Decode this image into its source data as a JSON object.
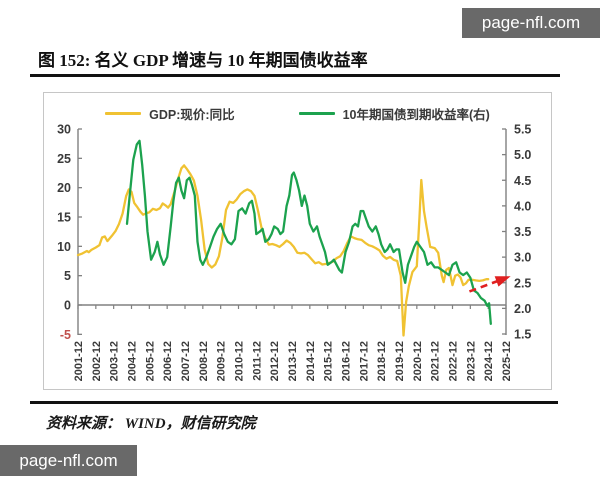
{
  "watermark": {
    "text": "page-nfl.com",
    "bg": "#696969",
    "fg": "#ffffff"
  },
  "figure": {
    "title": "图 152: 名义 GDP 增速与 10 年期国债收益率",
    "source_label": "资料来源： WIND，财信研究院"
  },
  "chart_data": {
    "type": "line",
    "title": "名义GDP增速与10年期国债收益率",
    "legend_position": "top",
    "grid": false,
    "legend": [
      {
        "label": "GDP:现价:同比",
        "color": "#F0C232",
        "axis": "left"
      },
      {
        "label": "10年期国债到期收益率(右)",
        "color": "#1CA24E",
        "axis": "right"
      }
    ],
    "x_axis": {
      "labels": [
        "2001-12",
        "2002-12",
        "2003-12",
        "2004-12",
        "2005-12",
        "2006-12",
        "2007-12",
        "2008-12",
        "2009-12",
        "2010-12",
        "2011-12",
        "2012-12",
        "2013-12",
        "2014-12",
        "2015-12",
        "2016-12",
        "2017-12",
        "2018-12",
        "2019-12",
        "2020-12",
        "2021-12",
        "2022-12",
        "2023-12",
        "2024-12",
        "2025-12"
      ],
      "span_years": 24
    },
    "left_axis": {
      "ticks": [
        30,
        25,
        20,
        15,
        10,
        5,
        0,
        -5
      ],
      "min": -5,
      "max": 30,
      "label_color": "#3a3a3a",
      "negative_color": "#C0504D"
    },
    "right_axis": {
      "ticks": [
        5.5,
        5.0,
        4.5,
        4.0,
        3.5,
        3.0,
        2.5,
        2.0,
        1.5
      ],
      "min": 1.5,
      "max": 5.5,
      "label_color": "#3a3a3a"
    },
    "axis_color": "#808080",
    "series": [
      {
        "name": "GDP:现价:同比",
        "axis": "left",
        "color": "#F0C232",
        "unit": "%",
        "points": [
          [
            0,
            8.5
          ],
          [
            0.25,
            8.8
          ],
          [
            0.5,
            9.2
          ],
          [
            0.6,
            9.0
          ],
          [
            0.75,
            9.4
          ],
          [
            1,
            9.8
          ],
          [
            1.2,
            10.2
          ],
          [
            1.35,
            11.5
          ],
          [
            1.5,
            11.7
          ],
          [
            1.65,
            10.9
          ],
          [
            1.9,
            11.8
          ],
          [
            2.1,
            12.6
          ],
          [
            2.3,
            13.8
          ],
          [
            2.5,
            15.6
          ],
          [
            2.7,
            18.6
          ],
          [
            2.85,
            19.7
          ],
          [
            3.0,
            19.3
          ],
          [
            3.15,
            17.4
          ],
          [
            3.3,
            16.8
          ],
          [
            3.5,
            15.9
          ],
          [
            3.65,
            15.4
          ],
          [
            3.8,
            15.6
          ],
          [
            4.0,
            15.8
          ],
          [
            4.2,
            16.4
          ],
          [
            4.4,
            16.2
          ],
          [
            4.6,
            16.5
          ],
          [
            4.75,
            17.3
          ],
          [
            4.9,
            17.0
          ],
          [
            5.05,
            16.6
          ],
          [
            5.2,
            17.2
          ],
          [
            5.4,
            19.2
          ],
          [
            5.6,
            21.4
          ],
          [
            5.8,
            23.3
          ],
          [
            5.95,
            23.8
          ],
          [
            6.1,
            23.2
          ],
          [
            6.3,
            22.3
          ],
          [
            6.5,
            21.2
          ],
          [
            6.7,
            18.6
          ],
          [
            6.9,
            14.5
          ],
          [
            7.1,
            9.5
          ],
          [
            7.3,
            7.0
          ],
          [
            7.5,
            6.4
          ],
          [
            7.7,
            6.9
          ],
          [
            7.9,
            8.3
          ],
          [
            8.1,
            11.5
          ],
          [
            8.3,
            16.2
          ],
          [
            8.5,
            17.6
          ],
          [
            8.7,
            17.4
          ],
          [
            8.9,
            18.0
          ],
          [
            9.1,
            18.9
          ],
          [
            9.3,
            19.4
          ],
          [
            9.5,
            19.7
          ],
          [
            9.7,
            19.4
          ],
          [
            9.9,
            18.6
          ],
          [
            10.1,
            16.0
          ],
          [
            10.3,
            13.0
          ],
          [
            10.5,
            11.4
          ],
          [
            10.7,
            10.3
          ],
          [
            10.9,
            10.4
          ],
          [
            11.1,
            10.2
          ],
          [
            11.3,
            9.9
          ],
          [
            11.5,
            10.4
          ],
          [
            11.7,
            11.0
          ],
          [
            11.9,
            10.6
          ],
          [
            12.1,
            9.9
          ],
          [
            12.3,
            8.9
          ],
          [
            12.5,
            8.8
          ],
          [
            12.7,
            8.9
          ],
          [
            12.9,
            8.5
          ],
          [
            13.1,
            7.8
          ],
          [
            13.3,
            7.1
          ],
          [
            13.5,
            7.3
          ],
          [
            13.7,
            6.9
          ],
          [
            13.9,
            7.0
          ],
          [
            14.1,
            7.2
          ],
          [
            14.3,
            7.4
          ],
          [
            14.5,
            8.0
          ],
          [
            14.7,
            8.3
          ],
          [
            14.9,
            9.2
          ],
          [
            15.1,
            10.6
          ],
          [
            15.3,
            11.7
          ],
          [
            15.5,
            11.4
          ],
          [
            15.7,
            11.2
          ],
          [
            15.9,
            11.1
          ],
          [
            16.1,
            10.6
          ],
          [
            16.3,
            10.2
          ],
          [
            16.5,
            10.0
          ],
          [
            16.7,
            9.7
          ],
          [
            16.9,
            9.3
          ],
          [
            17.1,
            8.4
          ],
          [
            17.3,
            7.9
          ],
          [
            17.5,
            8.2
          ],
          [
            17.7,
            7.7
          ],
          [
            17.9,
            7.5
          ],
          [
            18.1,
            5.0
          ],
          [
            18.25,
            -5.2
          ],
          [
            18.4,
            0.5
          ],
          [
            18.55,
            3.2
          ],
          [
            18.75,
            5.6
          ],
          [
            19.0,
            6.6
          ],
          [
            19.15,
            15.0
          ],
          [
            19.25,
            21.3
          ],
          [
            19.4,
            16.0
          ],
          [
            19.55,
            13.3
          ],
          [
            19.75,
            9.9
          ],
          [
            20.0,
            9.7
          ],
          [
            20.2,
            8.9
          ],
          [
            20.4,
            5.0
          ],
          [
            20.5,
            3.9
          ],
          [
            20.65,
            6.0
          ],
          [
            20.8,
            6.3
          ],
          [
            21.0,
            3.4
          ],
          [
            21.15,
            5.0
          ],
          [
            21.3,
            5.2
          ],
          [
            21.45,
            4.7
          ],
          [
            21.6,
            3.4
          ],
          [
            21.75,
            3.7
          ],
          [
            21.9,
            4.3
          ],
          [
            22.1,
            4.3
          ],
          [
            22.3,
            4.2
          ],
          [
            22.5,
            4.1
          ],
          [
            22.7,
            4.2
          ],
          [
            22.9,
            4.4
          ],
          [
            23.0,
            4.4
          ]
        ]
      },
      {
        "name": "10年期国债到期收益率(右)",
        "axis": "right",
        "color": "#1CA24E",
        "unit": "%",
        "points": [
          [
            2.75,
            3.65
          ],
          [
            2.9,
            4.2
          ],
          [
            3.1,
            4.9
          ],
          [
            3.3,
            5.2
          ],
          [
            3.45,
            5.27
          ],
          [
            3.6,
            4.8
          ],
          [
            3.75,
            4.2
          ],
          [
            3.9,
            3.5
          ],
          [
            4.1,
            2.95
          ],
          [
            4.3,
            3.1
          ],
          [
            4.45,
            3.3
          ],
          [
            4.6,
            3.05
          ],
          [
            4.8,
            2.85
          ],
          [
            5.0,
            3.0
          ],
          [
            5.2,
            3.6
          ],
          [
            5.35,
            4.1
          ],
          [
            5.5,
            4.45
          ],
          [
            5.65,
            4.55
          ],
          [
            5.8,
            4.3
          ],
          [
            5.95,
            4.15
          ],
          [
            6.1,
            4.5
          ],
          [
            6.25,
            4.55
          ],
          [
            6.4,
            4.4
          ],
          [
            6.55,
            4.2
          ],
          [
            6.7,
            3.3
          ],
          [
            6.85,
            2.95
          ],
          [
            7.0,
            2.85
          ],
          [
            7.2,
            3.0
          ],
          [
            7.4,
            3.2
          ],
          [
            7.6,
            3.4
          ],
          [
            7.8,
            3.55
          ],
          [
            8.0,
            3.65
          ],
          [
            8.2,
            3.45
          ],
          [
            8.4,
            3.3
          ],
          [
            8.6,
            3.25
          ],
          [
            8.8,
            3.35
          ],
          [
            9.0,
            3.9
          ],
          [
            9.2,
            3.95
          ],
          [
            9.4,
            3.85
          ],
          [
            9.6,
            4.05
          ],
          [
            9.75,
            4.1
          ],
          [
            9.9,
            3.85
          ],
          [
            10.0,
            3.45
          ],
          [
            10.2,
            3.5
          ],
          [
            10.35,
            3.55
          ],
          [
            10.5,
            3.3
          ],
          [
            10.7,
            3.35
          ],
          [
            10.85,
            3.45
          ],
          [
            11.0,
            3.6
          ],
          [
            11.2,
            3.55
          ],
          [
            11.35,
            3.45
          ],
          [
            11.5,
            3.5
          ],
          [
            11.7,
            4.0
          ],
          [
            11.85,
            4.2
          ],
          [
            12.0,
            4.6
          ],
          [
            12.1,
            4.65
          ],
          [
            12.25,
            4.5
          ],
          [
            12.4,
            4.3
          ],
          [
            12.55,
            4.0
          ],
          [
            12.7,
            4.2
          ],
          [
            12.85,
            4.0
          ],
          [
            13.0,
            3.65
          ],
          [
            13.2,
            3.5
          ],
          [
            13.4,
            3.6
          ],
          [
            13.55,
            3.4
          ],
          [
            13.7,
            3.25
          ],
          [
            13.85,
            3.1
          ],
          [
            14.0,
            2.85
          ],
          [
            14.2,
            2.9
          ],
          [
            14.35,
            2.95
          ],
          [
            14.5,
            2.85
          ],
          [
            14.65,
            2.75
          ],
          [
            14.8,
            2.7
          ],
          [
            15.0,
            3.1
          ],
          [
            15.2,
            3.3
          ],
          [
            15.4,
            3.6
          ],
          [
            15.55,
            3.65
          ],
          [
            15.7,
            3.6
          ],
          [
            15.85,
            3.9
          ],
          [
            16.0,
            3.9
          ],
          [
            16.15,
            3.75
          ],
          [
            16.3,
            3.6
          ],
          [
            16.5,
            3.5
          ],
          [
            16.7,
            3.6
          ],
          [
            16.85,
            3.45
          ],
          [
            17.0,
            3.25
          ],
          [
            17.2,
            3.1
          ],
          [
            17.35,
            3.15
          ],
          [
            17.5,
            3.25
          ],
          [
            17.7,
            3.1
          ],
          [
            17.85,
            3.15
          ],
          [
            18.0,
            3.15
          ],
          [
            18.2,
            2.7
          ],
          [
            18.35,
            2.5
          ],
          [
            18.5,
            2.85
          ],
          [
            18.7,
            3.05
          ],
          [
            18.85,
            3.2
          ],
          [
            19.0,
            3.3
          ],
          [
            19.2,
            3.2
          ],
          [
            19.4,
            3.1
          ],
          [
            19.6,
            2.85
          ],
          [
            19.8,
            2.9
          ],
          [
            20.0,
            2.8
          ],
          [
            20.2,
            2.8
          ],
          [
            20.4,
            2.75
          ],
          [
            20.6,
            2.7
          ],
          [
            20.8,
            2.65
          ],
          [
            21.0,
            2.85
          ],
          [
            21.2,
            2.9
          ],
          [
            21.4,
            2.7
          ],
          [
            21.6,
            2.65
          ],
          [
            21.8,
            2.7
          ],
          [
            22.0,
            2.6
          ],
          [
            22.2,
            2.35
          ],
          [
            22.4,
            2.3
          ],
          [
            22.6,
            2.2
          ],
          [
            22.8,
            2.15
          ],
          [
            22.95,
            2.05
          ],
          [
            23.05,
            2.1
          ],
          [
            23.15,
            1.7
          ]
        ]
      }
    ],
    "annotation_arrow": {
      "color": "#E02020",
      "style": "dashed",
      "axis": "right",
      "from": [
        21.95,
        2.33
      ],
      "to": [
        24.05,
        2.6
      ],
      "meaning": "expected rebound of 10Y yield toward ~2.6"
    }
  }
}
